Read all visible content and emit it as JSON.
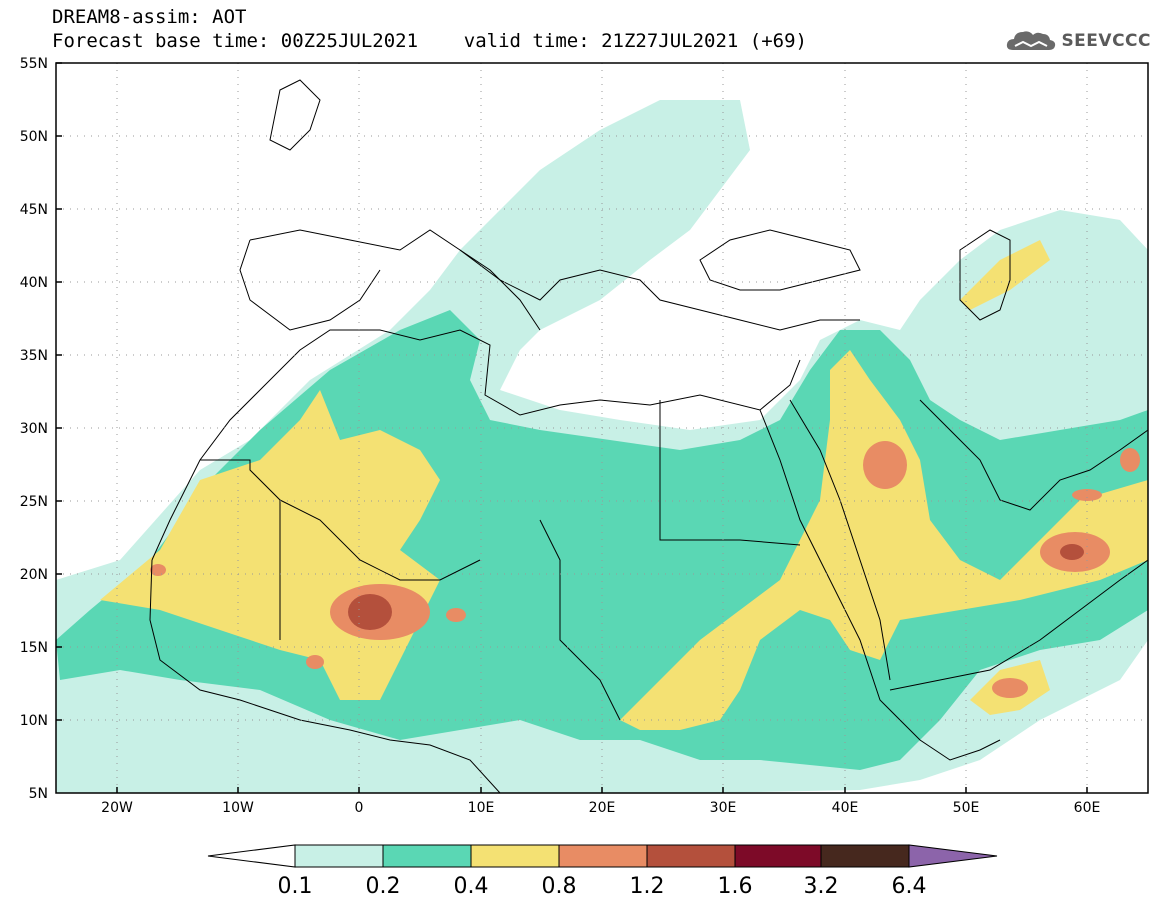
{
  "header": {
    "title": "DREAM8-assim: AOT",
    "subtitle": "Forecast base time: 00Z25JUL2021    valid time: 21Z27JUL2021 (+69)"
  },
  "logo": {
    "text": "SEEVCCC",
    "icon": "cloud-icon"
  },
  "map": {
    "lon_range": [
      -25,
      65
    ],
    "lat_range": [
      5,
      55
    ],
    "y_ticks": [
      "55N",
      "50N",
      "45N",
      "40N",
      "35N",
      "30N",
      "25N",
      "20N",
      "15N",
      "10N",
      "5N"
    ],
    "x_ticks": [
      "20W",
      "10W",
      "0",
      "10E",
      "20E",
      "30E",
      "40E",
      "50E",
      "60E"
    ],
    "grid": "dotted"
  },
  "colorbar": {
    "levels": [
      "0.1",
      "0.2",
      "0.4",
      "0.8",
      "1.2",
      "1.6",
      "3.2",
      "6.4"
    ],
    "colors": [
      "#ffffff",
      "#c8f0e6",
      "#5ad7b4",
      "#f4e173",
      "#e88c64",
      "#b4503c",
      "#7d0a28",
      "#46281e",
      "#8c64aa"
    ]
  }
}
